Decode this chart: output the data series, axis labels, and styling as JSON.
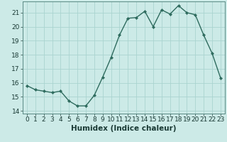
{
  "x": [
    0,
    1,
    2,
    3,
    4,
    5,
    6,
    7,
    8,
    9,
    10,
    11,
    12,
    13,
    14,
    15,
    16,
    17,
    18,
    19,
    20,
    21,
    22,
    23
  ],
  "y": [
    15.8,
    15.5,
    15.4,
    15.3,
    15.4,
    14.7,
    14.35,
    14.35,
    15.1,
    16.4,
    17.8,
    19.4,
    20.6,
    20.65,
    21.1,
    20.0,
    21.2,
    20.9,
    21.5,
    21.0,
    20.85,
    19.4,
    18.1,
    16.35
  ],
  "line_color": "#2e6b5e",
  "marker": "D",
  "marker_size": 2.2,
  "bg_color": "#cceae7",
  "grid_color": "#aad4d0",
  "xlabel": "Humidex (Indice chaleur)",
  "xlim": [
    -0.5,
    23.5
  ],
  "ylim": [
    13.8,
    21.8
  ],
  "yticks": [
    14,
    15,
    16,
    17,
    18,
    19,
    20,
    21
  ],
  "xticks": [
    0,
    1,
    2,
    3,
    4,
    5,
    6,
    7,
    8,
    9,
    10,
    11,
    12,
    13,
    14,
    15,
    16,
    17,
    18,
    19,
    20,
    21,
    22,
    23
  ],
  "tick_label_fontsize": 6.5,
  "xlabel_fontsize": 7.5,
  "line_width": 1.0
}
